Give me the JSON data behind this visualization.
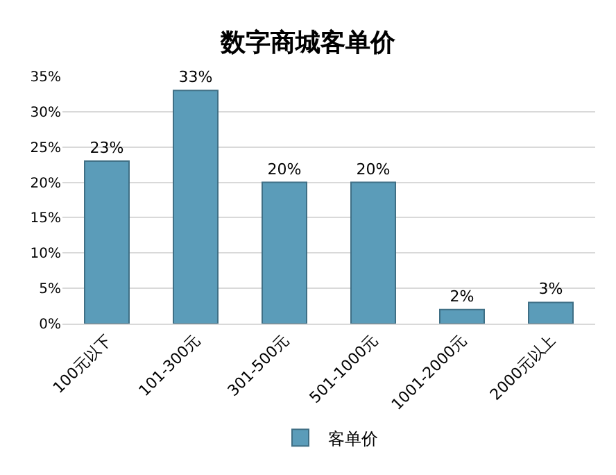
{
  "chart_data": {
    "type": "bar",
    "title": "数字商城客单价",
    "categories": [
      "100元以下",
      "101-300元",
      "301-500元",
      "501-1000元",
      "1001-2000元",
      "2000元以上"
    ],
    "series": [
      {
        "name": "客单价",
        "color": "#5b9cb9",
        "values": [
          23,
          33,
          20,
          20,
          2,
          3
        ],
        "value_labels": [
          "23%",
          "33%",
          "20%",
          "20%",
          "2%",
          "3%"
        ]
      }
    ],
    "ylim": [
      0,
      35
    ],
    "yticks": [
      {
        "value": 0,
        "label": "0%"
      },
      {
        "value": 5,
        "label": "5%"
      },
      {
        "value": 10,
        "label": "10%"
      },
      {
        "value": 15,
        "label": "15%"
      },
      {
        "value": 20,
        "label": "20%"
      },
      {
        "value": 25,
        "label": "25%"
      },
      {
        "value": 30,
        "label": "30%"
      },
      {
        "value": 35,
        "label": "35%"
      }
    ],
    "grid": "y",
    "legend": "bottom"
  }
}
